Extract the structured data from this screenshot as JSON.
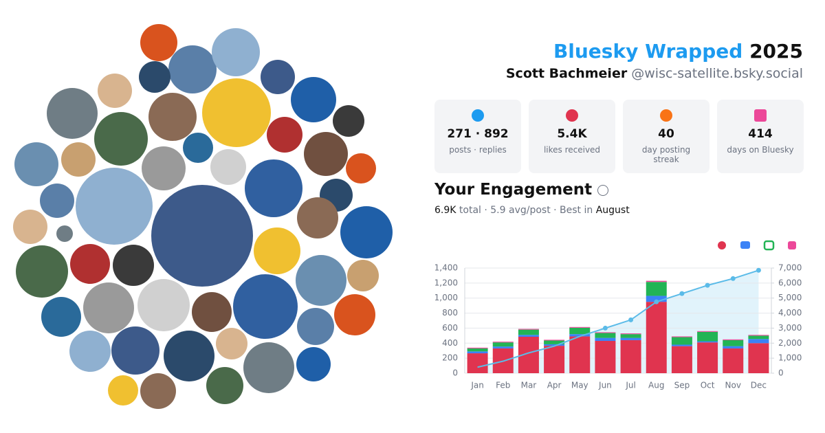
{
  "header": {
    "title_brand": "Bluesky Wrapped",
    "title_year": "2025",
    "name": "Scott Bachmeier",
    "handle": "@wisc-satellite.bsky.social"
  },
  "stats": [
    {
      "value": "271 · 892",
      "label": "posts · replies"
    },
    {
      "value": "5.4K",
      "label": "likes received"
    },
    {
      "value": "40",
      "label": "day posting streak"
    },
    {
      "value": "414",
      "label": "days on Bluesky"
    }
  ],
  "engagement": {
    "title": "Your Engagement",
    "total": "6.9K",
    "middle": "total · 5.9 avg/post · Best in",
    "best": "August"
  },
  "chart_data": {
    "type": "bar",
    "stacked": true,
    "grid": true,
    "categories": [
      "Jan",
      "Feb",
      "Mar",
      "Apr",
      "May",
      "Jun",
      "Jul",
      "Aug",
      "Sep",
      "Oct",
      "Nov",
      "Dec"
    ],
    "series": [
      {
        "color": "#e0344f",
        "values": [
          265,
          330,
          485,
          365,
          490,
          430,
          440,
          950,
          360,
          410,
          330,
          400
        ]
      },
      {
        "color": "#3b82f6",
        "values": [
          25,
          25,
          25,
          20,
          30,
          40,
          30,
          80,
          20,
          15,
          30,
          55
        ]
      },
      {
        "color": "#22b455",
        "values": [
          40,
          55,
          70,
          50,
          85,
          65,
          50,
          185,
          100,
          125,
          80,
          45
        ]
      },
      {
        "color": "#ec4899",
        "values": [
          10,
          10,
          10,
          10,
          10,
          10,
          10,
          15,
          10,
          10,
          10,
          10
        ]
      },
      {
        "type": "line",
        "axis": "y2",
        "color": "#5bbbe8",
        "values": [
          400,
          800,
          1350,
          1800,
          2450,
          3000,
          3550,
          4750,
          5300,
          5850,
          6300,
          6850
        ]
      }
    ],
    "ylim": [
      0,
      1400
    ],
    "yticks": [
      0,
      200,
      400,
      600,
      800,
      {
        "value": 1000,
        "label": "1,000"
      },
      {
        "value": 1200,
        "label": "1,200"
      },
      {
        "value": 1400,
        "label": "1,400"
      }
    ],
    "y2lim": [
      0,
      7000
    ],
    "y2ticks": [
      0,
      {
        "value": 1000,
        "label": "1,000"
      },
      {
        "value": 2000,
        "label": "2,000"
      },
      {
        "value": 3000,
        "label": "3,000"
      },
      {
        "value": 4000,
        "label": "4,000"
      },
      {
        "value": 5000,
        "label": "5,000"
      },
      {
        "value": 6000,
        "label": "6,000"
      },
      {
        "value": 7000,
        "label": "7,000"
      }
    ]
  }
}
